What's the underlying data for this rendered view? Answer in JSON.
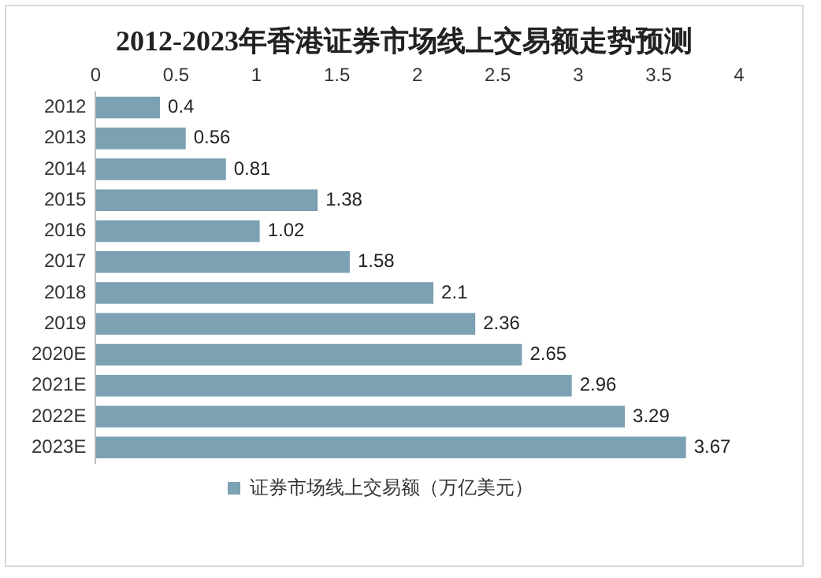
{
  "chart_data": {
    "type": "bar",
    "orientation": "horizontal",
    "title": "2012-2023年香港证券市场线上交易额走势预测",
    "categories": [
      "2012",
      "2013",
      "2014",
      "2015",
      "2016",
      "2017",
      "2018",
      "2019",
      "2020E",
      "2021E",
      "2022E",
      "2023E"
    ],
    "series": [
      {
        "name": "证券市场线上交易额（万亿美元）",
        "color": "#7ba1b3",
        "values": [
          0.4,
          0.56,
          0.81,
          1.38,
          1.02,
          1.58,
          2.1,
          2.36,
          2.65,
          2.96,
          3.29,
          3.67
        ]
      }
    ],
    "xlim": [
      0,
      4
    ],
    "xticks": [
      0,
      0.5,
      1,
      1.5,
      2,
      2.5,
      3,
      3.5,
      4
    ],
    "grid": false,
    "legend": "bottom",
    "data_labels": true
  }
}
